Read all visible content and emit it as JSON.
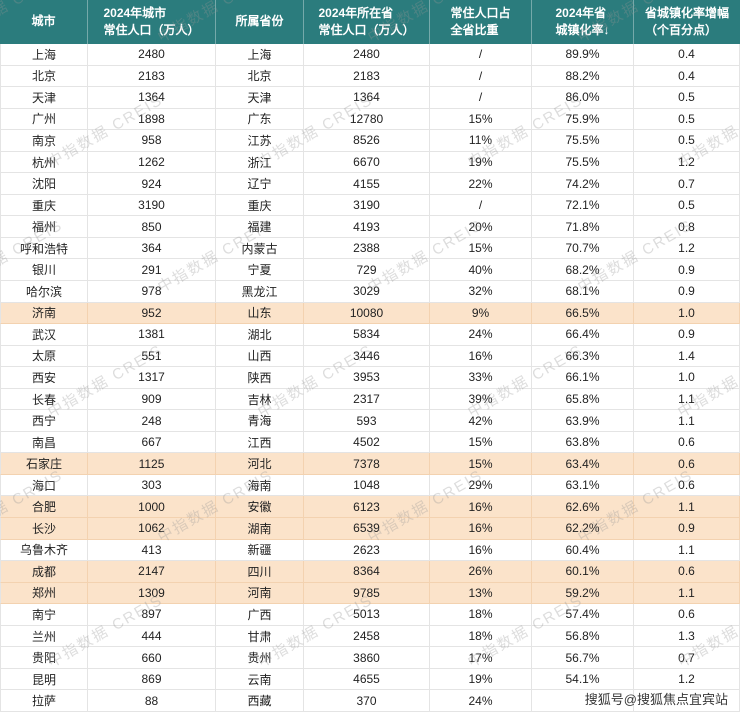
{
  "chart_data": {
    "type": "table",
    "title": "",
    "columns": [
      "城市",
      "2024年城市常住人口（万人）",
      "所属省份",
      "2024年所在省常住人口（万人）",
      "常住人口占全省比重",
      "2024年省城镇化率↓",
      "省城镇化率增幅（个百分点）"
    ],
    "header_lines": [
      [
        "城市"
      ],
      [
        "2024年城市",
        "常住人口（万人）"
      ],
      [
        "所属省份"
      ],
      [
        "2024年所在省",
        "常住人口（万人）"
      ],
      [
        "常住人口占",
        "全省比重"
      ],
      [
        "2024年省",
        "城镇化率↓"
      ],
      [
        "省城镇化率增幅",
        "（个百分点）"
      ]
    ],
    "rows": [
      {
        "cells": [
          "上海",
          "2480",
          "上海",
          "2480",
          "/",
          "89.9%",
          "0.4"
        ],
        "highlight": false
      },
      {
        "cells": [
          "北京",
          "2183",
          "北京",
          "2183",
          "/",
          "88.2%",
          "0.4"
        ],
        "highlight": false
      },
      {
        "cells": [
          "天津",
          "1364",
          "天津",
          "1364",
          "/",
          "86.0%",
          "0.5"
        ],
        "highlight": false
      },
      {
        "cells": [
          "广州",
          "1898",
          "广东",
          "12780",
          "15%",
          "75.9%",
          "0.5"
        ],
        "highlight": false
      },
      {
        "cells": [
          "南京",
          "958",
          "江苏",
          "8526",
          "11%",
          "75.5%",
          "0.5"
        ],
        "highlight": false
      },
      {
        "cells": [
          "杭州",
          "1262",
          "浙江",
          "6670",
          "19%",
          "75.5%",
          "1.2"
        ],
        "highlight": false
      },
      {
        "cells": [
          "沈阳",
          "924",
          "辽宁",
          "4155",
          "22%",
          "74.2%",
          "0.7"
        ],
        "highlight": false
      },
      {
        "cells": [
          "重庆",
          "3190",
          "重庆",
          "3190",
          "/",
          "72.1%",
          "0.5"
        ],
        "highlight": false
      },
      {
        "cells": [
          "福州",
          "850",
          "福建",
          "4193",
          "20%",
          "71.8%",
          "0.8"
        ],
        "highlight": false
      },
      {
        "cells": [
          "呼和浩特",
          "364",
          "内蒙古",
          "2388",
          "15%",
          "70.7%",
          "1.2"
        ],
        "highlight": false
      },
      {
        "cells": [
          "银川",
          "291",
          "宁夏",
          "729",
          "40%",
          "68.2%",
          "0.9"
        ],
        "highlight": false
      },
      {
        "cells": [
          "哈尔滨",
          "978",
          "黑龙江",
          "3029",
          "32%",
          "68.1%",
          "0.9"
        ],
        "highlight": false
      },
      {
        "cells": [
          "济南",
          "952",
          "山东",
          "10080",
          "9%",
          "66.5%",
          "1.0"
        ],
        "highlight": true
      },
      {
        "cells": [
          "武汉",
          "1381",
          "湖北",
          "5834",
          "24%",
          "66.4%",
          "0.9"
        ],
        "highlight": false
      },
      {
        "cells": [
          "太原",
          "551",
          "山西",
          "3446",
          "16%",
          "66.3%",
          "1.4"
        ],
        "highlight": false
      },
      {
        "cells": [
          "西安",
          "1317",
          "陕西",
          "3953",
          "33%",
          "66.1%",
          "1.0"
        ],
        "highlight": false
      },
      {
        "cells": [
          "长春",
          "909",
          "吉林",
          "2317",
          "39%",
          "65.8%",
          "1.1"
        ],
        "highlight": false
      },
      {
        "cells": [
          "西宁",
          "248",
          "青海",
          "593",
          "42%",
          "63.9%",
          "1.1"
        ],
        "highlight": false
      },
      {
        "cells": [
          "南昌",
          "667",
          "江西",
          "4502",
          "15%",
          "63.8%",
          "0.6"
        ],
        "highlight": false
      },
      {
        "cells": [
          "石家庄",
          "1125",
          "河北",
          "7378",
          "15%",
          "63.4%",
          "0.6"
        ],
        "highlight": true
      },
      {
        "cells": [
          "海口",
          "303",
          "海南",
          "1048",
          "29%",
          "63.1%",
          "0.6"
        ],
        "highlight": false
      },
      {
        "cells": [
          "合肥",
          "1000",
          "安徽",
          "6123",
          "16%",
          "62.6%",
          "1.1"
        ],
        "highlight": true
      },
      {
        "cells": [
          "长沙",
          "1062",
          "湖南",
          "6539",
          "16%",
          "62.2%",
          "0.9"
        ],
        "highlight": true
      },
      {
        "cells": [
          "乌鲁木齐",
          "413",
          "新疆",
          "2623",
          "16%",
          "60.4%",
          "1.1"
        ],
        "highlight": false
      },
      {
        "cells": [
          "成都",
          "2147",
          "四川",
          "8364",
          "26%",
          "60.1%",
          "0.6"
        ],
        "highlight": true
      },
      {
        "cells": [
          "郑州",
          "1309",
          "河南",
          "9785",
          "13%",
          "59.2%",
          "1.1"
        ],
        "highlight": true
      },
      {
        "cells": [
          "南宁",
          "897",
          "广西",
          "5013",
          "18%",
          "57.4%",
          "0.6"
        ],
        "highlight": false
      },
      {
        "cells": [
          "兰州",
          "444",
          "甘肃",
          "2458",
          "18%",
          "56.8%",
          "1.3"
        ],
        "highlight": false
      },
      {
        "cells": [
          "贵阳",
          "660",
          "贵州",
          "3860",
          "17%",
          "56.7%",
          "0.7"
        ],
        "highlight": false
      },
      {
        "cells": [
          "昆明",
          "869",
          "云南",
          "4655",
          "19%",
          "54.1%",
          "1.2"
        ],
        "highlight": false
      },
      {
        "cells": [
          "拉萨",
          "88",
          "西藏",
          "370",
          "24%",
          "",
          ""
        ],
        "highlight": false
      }
    ]
  },
  "watermarks": {
    "diagonal": "中指数据 CREIS",
    "sohu": "搜狐号@搜狐焦点宜宾站"
  },
  "colors": {
    "header_bg": "#2B7C7D",
    "header_text": "#FFFFFF",
    "highlight_row_bg": "#FBE3CA",
    "highlight_border": "#F3D2B0",
    "grid_line": "#E4E4E4",
    "cell_text": "#222222"
  }
}
